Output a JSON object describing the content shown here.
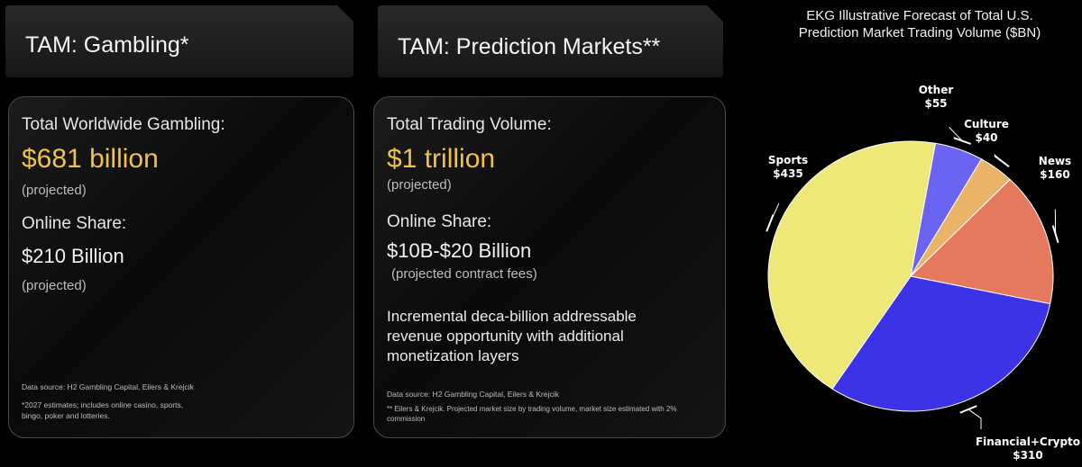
{
  "gambling": {
    "header": "TAM: Gambling*",
    "total_label": "Total Worldwide Gambling:",
    "total_value": "$681 billion",
    "total_note": "(projected)",
    "online_label": "Online Share:",
    "online_value": "$210 Billion",
    "online_note": "(projected)",
    "source": "Data source: H2 Gambling Capital, Eilers & Krejcik",
    "footnote_1": "*2027 estimates;  includes online casino, sports,",
    "footnote_2": "bingo, poker and lotteries."
  },
  "prediction": {
    "header": "TAM: Prediction Markets**",
    "total_label": "Total Trading Volume:",
    "total_value": "$1 trillion",
    "total_note": "(projected)",
    "online_label": "Online Share:",
    "online_value": "$10B-$20 Billion",
    "online_note": "(projected contract fees)",
    "paragraph": "Incremental deca-billion addressable revenue opportunity with additional monetization layers",
    "source": "Data source: H2 Gambling Capital, Eilers & Krejcik",
    "footnote": "** Eilers & Krejcik. Projected market size by trading volume, market size estimated with 2% commission"
  },
  "chart_data": {
    "type": "pie",
    "title": "EKG Illustrative Forecast of Total U.S. Prediction Market Trading Volume ($BN)",
    "unit": "$BN",
    "slices": [
      {
        "name": "Other",
        "value": 55,
        "value_label": "$55",
        "color": "#6b63f2"
      },
      {
        "name": "Culture",
        "value": 40,
        "value_label": "$40",
        "color": "#e9b468"
      },
      {
        "name": "News",
        "value": 160,
        "value_label": "$160",
        "color": "#e4795d"
      },
      {
        "name": "Financial+Crypto",
        "value": 310,
        "value_label": "$310",
        "color": "#3d33e6"
      },
      {
        "name": "Sports",
        "value": 435,
        "value_label": "$435",
        "color": "#eee879"
      }
    ]
  }
}
